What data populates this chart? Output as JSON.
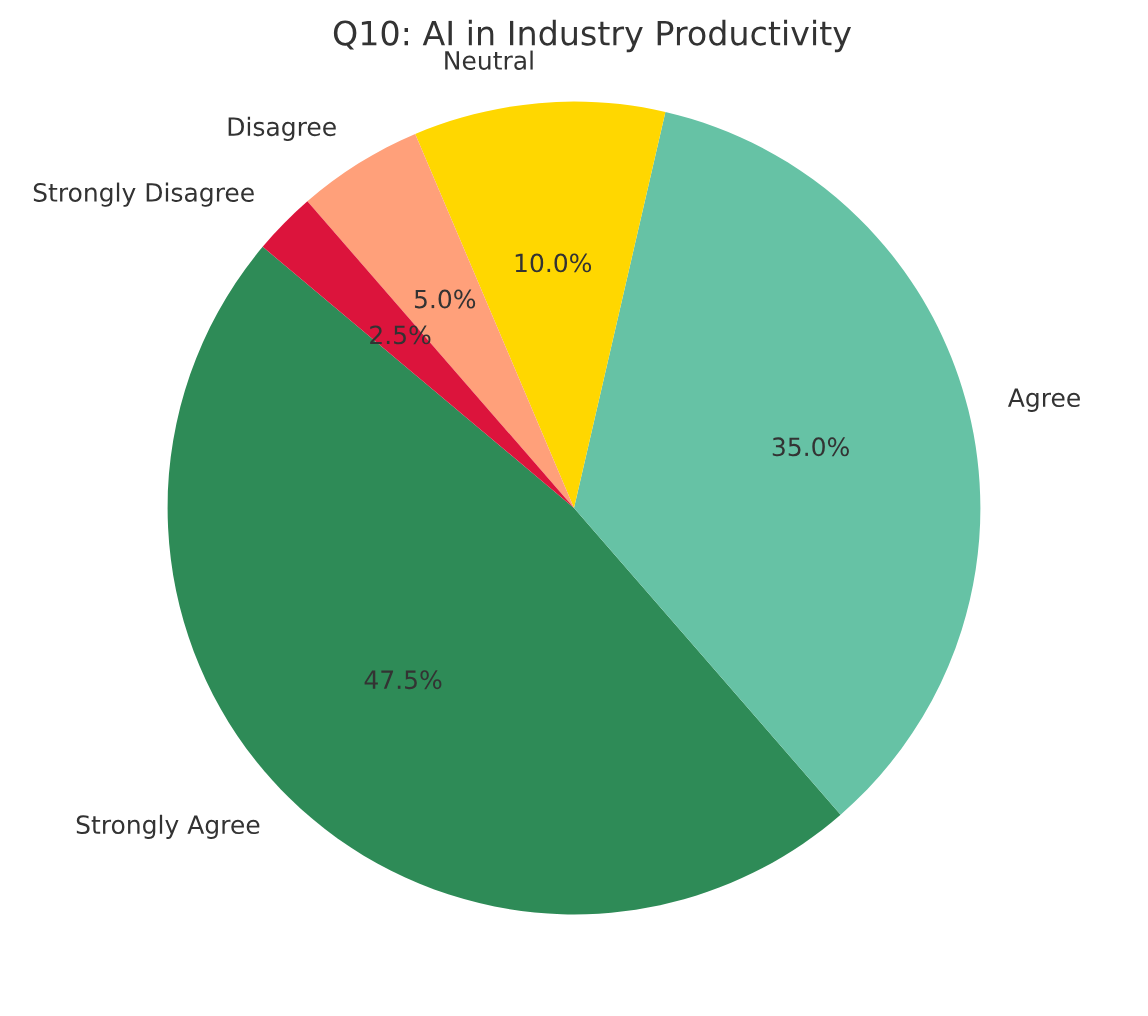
{
  "chart_data": {
    "type": "pie",
    "title": "Q10: AI in Industry Productivity",
    "categories": [
      "Strongly Agree",
      "Agree",
      "Neutral",
      "Disagree",
      "Strongly Disagree"
    ],
    "values": [
      47.5,
      35.0,
      10.0,
      5.0,
      2.5
    ],
    "colors": [
      "#2e8b57",
      "#66c2a5",
      "#ffd700",
      "#ffa07a",
      "#dc143c"
    ],
    "value_labels": [
      "47.5%",
      "35.0%",
      "10.0%",
      "5.0%",
      "2.5%"
    ]
  }
}
